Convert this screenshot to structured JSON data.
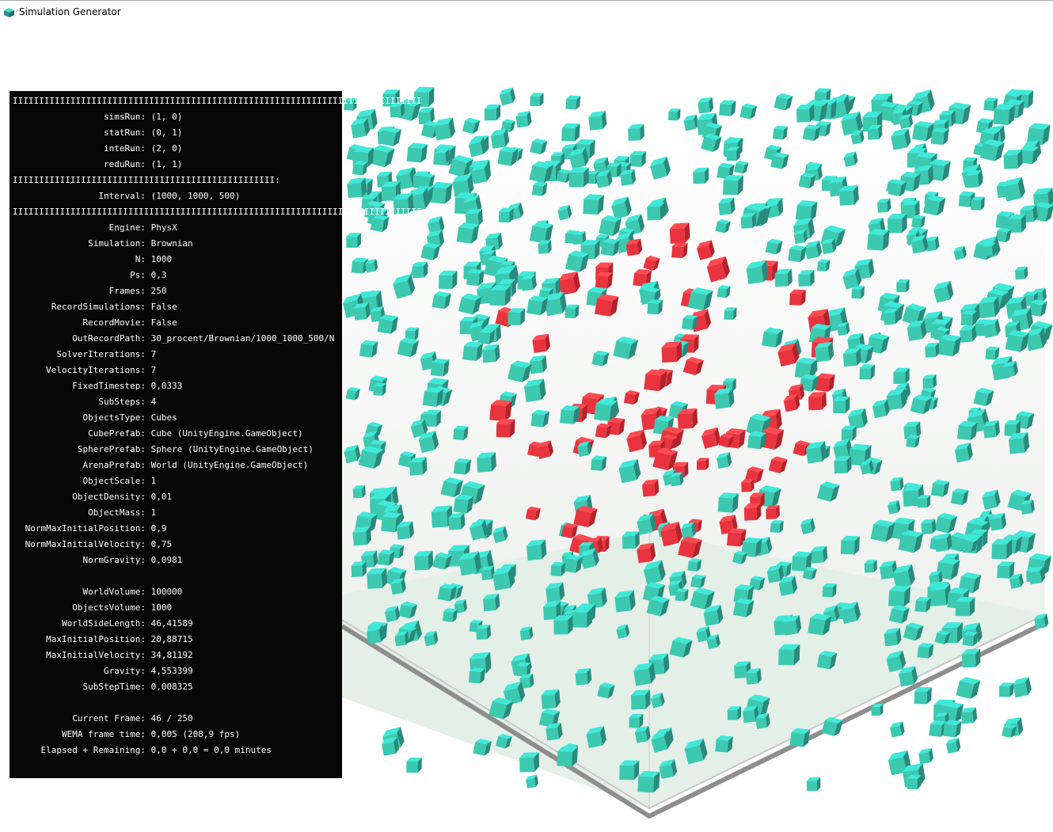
{
  "window": {
    "title": "Simulation Generator",
    "icon": "unity-cube-icon"
  },
  "colors": {
    "panel_bg": "#060606",
    "panel_text": "#ffffff",
    "cube_teal": "#3cc9b0",
    "cube_teal_top": "#40e8d8",
    "cube_red": "#e8343e",
    "floor": "#e4efe8",
    "arena_edge": "#909090"
  },
  "panel": {
    "rule_long": "IIIIIIIIIIIIIIIIIIIIIIIIIIIIIIIIIIIIIIIIIIIIIIIIIIIIIIIIIIIIIIIIIIIIIIIIIIIIII",
    "rule_short": "IIIIIIIIIIIIIIIIIIIIIIIIIIIIIIIIIIIIIIIIIIIIIIIIII:",
    "run_rows": [
      {
        "key": "simsRun:",
        "value": "(1, 0)"
      },
      {
        "key": "statRun:",
        "value": "(0, 1)"
      },
      {
        "key": "inteRun:",
        "value": "(2, 0)"
      },
      {
        "key": "reduRun:",
        "value": "(1, 1)"
      }
    ],
    "interval_row": {
      "key": "Interval:",
      "value": "(1000, 1000, 500)"
    },
    "settings_rows": [
      {
        "key": "Engine:",
        "value": "PhysX"
      },
      {
        "key": "Simulation:",
        "value": "Brownian"
      },
      {
        "key": "N:",
        "value": "1000"
      },
      {
        "key": "Ps:",
        "value": "0,3"
      },
      {
        "key": "Frames:",
        "value": "250"
      },
      {
        "key": "RecordSimulations:",
        "value": "False"
      },
      {
        "key": "RecordMovie:",
        "value": "False"
      },
      {
        "key": "OutRecordPath:",
        "value": "30_procent/Brownian/1000_1000_500/N"
      },
      {
        "key": "SolverIterations:",
        "value": "7"
      },
      {
        "key": "VelocityIterations:",
        "value": "7"
      },
      {
        "key": "FixedTimestep:",
        "value": "0,0333"
      },
      {
        "key": "SubSteps:",
        "value": "4"
      },
      {
        "key": "ObjectsType:",
        "value": "Cubes"
      },
      {
        "key": "CubePrefab:",
        "value": "Cube (UnityEngine.GameObject)"
      },
      {
        "key": "SpherePrefab:",
        "value": "Sphere (UnityEngine.GameObject)"
      },
      {
        "key": "ArenaPrefab:",
        "value": "World (UnityEngine.GameObject)"
      },
      {
        "key": "ObjectScale:",
        "value": "1"
      },
      {
        "key": "ObjectDensity:",
        "value": "0,01"
      },
      {
        "key": "ObjectMass:",
        "value": "1"
      },
      {
        "key": "NormMaxInitialPosition:",
        "value": "0,9"
      },
      {
        "key": "NormMaxInitialVelocity:",
        "value": "0,75"
      },
      {
        "key": "NormGravity:",
        "value": "0,0981"
      }
    ],
    "derived_rows": [
      {
        "key": "WorldVolume:",
        "value": "100000"
      },
      {
        "key": "ObjectsVolume:",
        "value": "1000"
      },
      {
        "key": "WorldSideLength:",
        "value": "46,41589"
      },
      {
        "key": "MaxInitialPosition:",
        "value": "20,88715"
      },
      {
        "key": "MaxInitialVelocity:",
        "value": "34,81192"
      },
      {
        "key": "Gravity:",
        "value": "4,553399"
      },
      {
        "key": "SubStepTime:",
        "value": "0,008325"
      }
    ],
    "status_rows": [
      {
        "key": "Current Frame:",
        "value": "46 / 250"
      },
      {
        "key": "WEMA frame time:",
        "value": "0,005 (208,9 fps)"
      },
      {
        "key": "Elapsed + Remaining:",
        "value": "0,0 + 0,0 = 0,0 minutes"
      }
    ]
  }
}
